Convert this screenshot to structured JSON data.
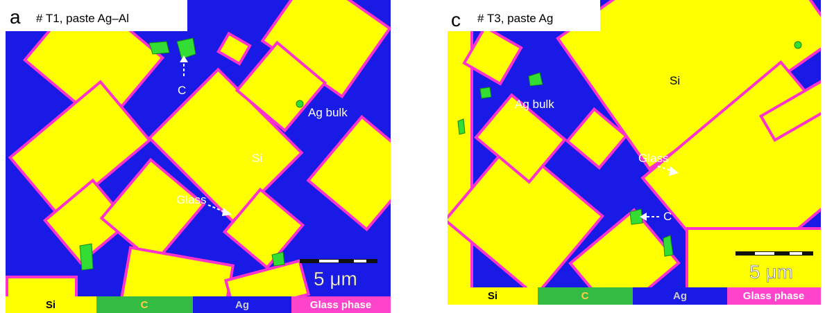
{
  "panels": [
    {
      "letter": "a",
      "title": "# T1, paste Ag–Al",
      "labels": {
        "si": "Si",
        "ag": "Ag bulk",
        "glass": "Glass",
        "c": "C"
      },
      "scale_bar": "5 μm",
      "legend": [
        "Si",
        "C",
        "Ag",
        "Glass phase"
      ]
    },
    {
      "letter": "c",
      "title": "# T3, paste Ag",
      "labels": {
        "si": "Si",
        "ag": "Ag bulk",
        "glass": "Glass",
        "c": "C"
      },
      "scale_bar": "5 μm",
      "legend": [
        "Si",
        "C",
        "Ag",
        "Glass phase"
      ]
    }
  ]
}
